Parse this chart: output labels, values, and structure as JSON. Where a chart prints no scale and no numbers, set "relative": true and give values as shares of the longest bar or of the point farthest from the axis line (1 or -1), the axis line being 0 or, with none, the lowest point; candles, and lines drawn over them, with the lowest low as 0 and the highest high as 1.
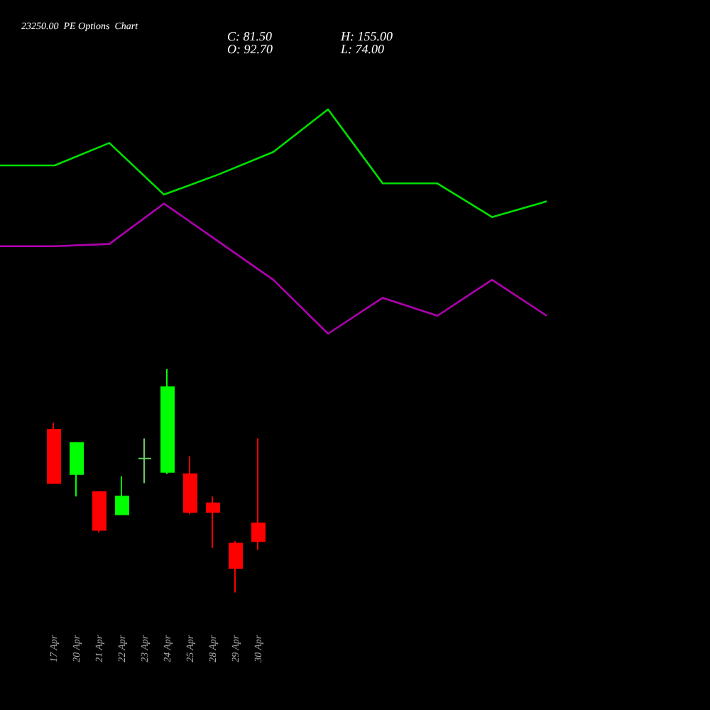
{
  "chart_data": [
    {
      "type": "line",
      "title": "23250.00  PE Options  Chart",
      "annotations": [
        "C: 81.50",
        "O: 92.70",
        "H: 155.00",
        "L: 74.00"
      ],
      "relative": true,
      "categories": [
        null,
        null,
        null,
        null,
        null,
        null,
        null,
        null,
        null,
        null,
        null
      ],
      "series": [
        {
          "color": "#00e000",
          "values": [
            0.75,
            0.75,
            0.85,
            0.62,
            0.71,
            0.81,
            1.0,
            0.67,
            0.67,
            0.52,
            0.59
          ]
        },
        {
          "color": "#b000b0",
          "values": [
            0.39,
            0.39,
            0.4,
            0.58,
            0.41,
            0.24,
            0.0,
            0.16,
            0.08,
            0.24,
            0.08
          ]
        }
      ]
    },
    {
      "type": "candlestick",
      "relative": true,
      "categories": [
        "17 Apr",
        "20 Apr",
        "21 Apr",
        "22 Apr",
        "23 Apr",
        "24 Apr",
        "25 Apr",
        "28 Apr",
        "29 Apr",
        "30 Apr"
      ],
      "ohlc": [
        [
          0.73,
          0.76,
          0.49,
          0.49
        ],
        [
          0.53,
          0.67,
          0.43,
          0.67
        ],
        [
          0.45,
          0.45,
          0.27,
          0.28
        ],
        [
          0.35,
          0.52,
          0.35,
          0.43
        ],
        [
          0.6,
          0.69,
          0.49,
          0.6
        ],
        [
          0.54,
          1.0,
          0.53,
          0.92
        ],
        [
          0.53,
          0.61,
          0.35,
          0.36
        ],
        [
          0.4,
          0.43,
          0.2,
          0.36
        ],
        [
          0.22,
          0.23,
          0.0,
          0.11
        ],
        [
          0.31,
          0.69,
          0.19,
          0.23
        ]
      ],
      "colors": [
        "#ff0000",
        "#00ff00",
        "#ff0000",
        "#00ff00",
        "#66cc66",
        "#00ff00",
        "#ff0000",
        "#ff0000",
        "#ff0000",
        "#ff0000"
      ]
    }
  ]
}
